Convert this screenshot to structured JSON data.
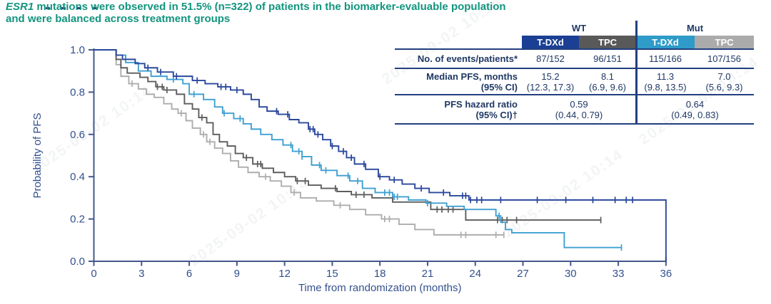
{
  "title": {
    "gene": "ESR1",
    "line1": " mutations were observed in 51.5% (n=322) of patients in the biomarker-evaluable population",
    "line2": "and were balanced across treatment groups",
    "color": "#12947E"
  },
  "watermark": {
    "text": "2025-09-02 10:14"
  },
  "table": {
    "line_color": "#223F7F",
    "text_color": "#1F3864",
    "group_headers": [
      "WT",
      "Mut"
    ],
    "col_headers": [
      {
        "label": "T-DXd",
        "bg": "#1B3F94"
      },
      {
        "label": "TPC",
        "bg": "#595959"
      },
      {
        "label": "T-DXd",
        "bg": "#2E9BC8"
      },
      {
        "label": "TPC",
        "bg": "#ABABAB"
      }
    ],
    "rows": [
      {
        "label": "No. of events/patients*",
        "values": [
          "87/152",
          "96/151",
          "115/166",
          "107/156"
        ]
      },
      {
        "label": "Median PFS, months",
        "label2": "(95% CI)",
        "values": [
          "15.2",
          "8.1",
          "11.3",
          "7.0"
        ],
        "values2": [
          "(12.3, 17.3)",
          "(6.9, 9.6)",
          "(9.8, 13.5)",
          "(5.6, 9.3)"
        ]
      },
      {
        "label": "PFS hazard ratio",
        "label2": "(95% CI)†",
        "values_span": [
          "0.59",
          "0.64"
        ],
        "values2_span": [
          "(0.44, 0.79)",
          "(0.49, 0.83)"
        ]
      }
    ]
  },
  "chart_data": {
    "type": "line",
    "subtype": "kaplan-meier-step",
    "xlabel": "Time from randomization (months)",
    "ylabel": "Probability of PFS",
    "xlim": [
      0,
      36
    ],
    "ylim": [
      0.0,
      1.0
    ],
    "xticks": [
      0,
      3,
      6,
      9,
      12,
      15,
      18,
      21,
      24,
      27,
      30,
      33,
      36
    ],
    "yticks": [
      0.0,
      0.2,
      0.4,
      0.6,
      0.8,
      1.0
    ],
    "grid": false,
    "legend": "none (series identified in table)",
    "axis_color": "#44588C",
    "tick_text_color": "#33508F",
    "series": [
      {
        "name": "Mut TPC",
        "color": "#ADADAD",
        "median_pfs_months": 7.0,
        "steps": [
          [
            1.4,
            0.93
          ],
          [
            1.7,
            0.875
          ],
          [
            2.2,
            0.84
          ],
          [
            2.8,
            0.815
          ],
          [
            3.3,
            0.79
          ],
          [
            3.8,
            0.775
          ],
          [
            4.4,
            0.745
          ],
          [
            4.9,
            0.72
          ],
          [
            5.3,
            0.7
          ],
          [
            5.8,
            0.665
          ],
          [
            6.2,
            0.63
          ],
          [
            6.7,
            0.6
          ],
          [
            7.1,
            0.565
          ],
          [
            7.6,
            0.535
          ],
          [
            8.1,
            0.51
          ],
          [
            8.6,
            0.475
          ],
          [
            9.1,
            0.445
          ],
          [
            9.7,
            0.42
          ],
          [
            10.4,
            0.4
          ],
          [
            11.1,
            0.38
          ],
          [
            11.8,
            0.355
          ],
          [
            12.4,
            0.325
          ],
          [
            13.0,
            0.3
          ],
          [
            14.0,
            0.285
          ],
          [
            15.1,
            0.265
          ],
          [
            16.1,
            0.245
          ],
          [
            17.1,
            0.22
          ],
          [
            18.1,
            0.2
          ],
          [
            19.2,
            0.175
          ],
          [
            20.2,
            0.15
          ],
          [
            21.4,
            0.125
          ]
        ],
        "end_t": 25.8,
        "drop_to_zero": false,
        "censors": [
          2.4,
          5.5,
          6.9,
          7.3,
          10.8,
          12.6,
          15.5,
          18.3,
          18.6,
          23.1,
          23.4,
          25.3,
          25.8
        ]
      },
      {
        "name": "WT TPC",
        "color": "#5D5D5D",
        "median_pfs_months": 8.1,
        "steps": [
          [
            1.4,
            0.955
          ],
          [
            1.7,
            0.915
          ],
          [
            2.1,
            0.89
          ],
          [
            2.9,
            0.87
          ],
          [
            3.4,
            0.85
          ],
          [
            3.9,
            0.825
          ],
          [
            4.4,
            0.81
          ],
          [
            5.2,
            0.79
          ],
          [
            5.7,
            0.745
          ],
          [
            6.2,
            0.72
          ],
          [
            6.6,
            0.68
          ],
          [
            7.1,
            0.655
          ],
          [
            7.5,
            0.6
          ],
          [
            7.9,
            0.565
          ],
          [
            8.4,
            0.545
          ],
          [
            8.9,
            0.51
          ],
          [
            9.4,
            0.49
          ],
          [
            10.0,
            0.46
          ],
          [
            10.6,
            0.44
          ],
          [
            11.3,
            0.42
          ],
          [
            12.0,
            0.4
          ],
          [
            12.7,
            0.38
          ],
          [
            13.5,
            0.36
          ],
          [
            14.3,
            0.345
          ],
          [
            15.3,
            0.33
          ],
          [
            16.2,
            0.315
          ],
          [
            17.5,
            0.3
          ],
          [
            18.8,
            0.28
          ],
          [
            21.2,
            0.245
          ],
          [
            23.4,
            0.195
          ]
        ],
        "end_t": 31.9,
        "drop_to_zero": false,
        "censors": [
          4.0,
          4.3,
          4.6,
          6.8,
          9.6,
          10.3,
          10.5,
          12.8,
          13.3,
          15.2,
          16.5,
          17.0,
          21.6,
          21.9,
          22.3,
          22.6,
          25.4,
          25.7,
          26.0,
          26.6,
          31.9
        ]
      },
      {
        "name": "Mut T-DXd",
        "color": "#3FA0D2",
        "median_pfs_months": 11.3,
        "steps": [
          [
            1.4,
            0.975
          ],
          [
            2.0,
            0.94
          ],
          [
            2.8,
            0.9
          ],
          [
            3.6,
            0.875
          ],
          [
            4.6,
            0.86
          ],
          [
            5.6,
            0.84
          ],
          [
            6.0,
            0.79
          ],
          [
            6.9,
            0.765
          ],
          [
            7.6,
            0.73
          ],
          [
            8.1,
            0.7
          ],
          [
            8.8,
            0.675
          ],
          [
            9.4,
            0.65
          ],
          [
            9.9,
            0.625
          ],
          [
            10.5,
            0.6
          ],
          [
            11.2,
            0.575
          ],
          [
            11.9,
            0.55
          ],
          [
            12.5,
            0.52
          ],
          [
            13.1,
            0.495
          ],
          [
            13.7,
            0.455
          ],
          [
            14.3,
            0.43
          ],
          [
            15.3,
            0.405
          ],
          [
            16.1,
            0.38
          ],
          [
            16.9,
            0.345
          ],
          [
            17.7,
            0.325
          ],
          [
            18.8,
            0.305
          ],
          [
            19.8,
            0.29
          ],
          [
            20.9,
            0.275
          ],
          [
            22.2,
            0.26
          ],
          [
            23.3,
            0.245
          ],
          [
            25.3,
            0.215
          ],
          [
            25.6,
            0.185
          ],
          [
            25.9,
            0.15
          ],
          [
            26.3,
            0.135
          ],
          [
            29.6,
            0.065
          ]
        ],
        "end_t": 33.2,
        "drop_to_zero": false,
        "censors": [
          5.0,
          6.3,
          8.2,
          9.2,
          12.4,
          12.9,
          13.1,
          14.2,
          14.6,
          16.0,
          16.6,
          18.3,
          18.6,
          18.9,
          19.1,
          21.0,
          25.5,
          33.2
        ]
      },
      {
        "name": "WT T-DXd",
        "color": "#2A479C",
        "median_pfs_months": 15.2,
        "steps": [
          [
            1.4,
            0.975
          ],
          [
            1.8,
            0.955
          ],
          [
            2.6,
            0.935
          ],
          [
            3.2,
            0.915
          ],
          [
            4.0,
            0.895
          ],
          [
            5.0,
            0.875
          ],
          [
            6.2,
            0.855
          ],
          [
            7.0,
            0.84
          ],
          [
            7.8,
            0.825
          ],
          [
            8.6,
            0.81
          ],
          [
            9.4,
            0.79
          ],
          [
            9.9,
            0.765
          ],
          [
            10.4,
            0.73
          ],
          [
            10.9,
            0.71
          ],
          [
            11.6,
            0.695
          ],
          [
            12.3,
            0.67
          ],
          [
            12.9,
            0.655
          ],
          [
            13.5,
            0.625
          ],
          [
            13.9,
            0.6
          ],
          [
            14.4,
            0.575
          ],
          [
            14.9,
            0.545
          ],
          [
            15.4,
            0.52
          ],
          [
            15.9,
            0.49
          ],
          [
            16.4,
            0.46
          ],
          [
            17.1,
            0.435
          ],
          [
            17.9,
            0.4
          ],
          [
            18.6,
            0.385
          ],
          [
            19.4,
            0.365
          ],
          [
            20.2,
            0.345
          ],
          [
            21.1,
            0.325
          ],
          [
            22.4,
            0.31
          ],
          [
            23.6,
            0.29
          ]
        ],
        "end_t": 36,
        "drop_to_zero": true,
        "censors": [
          3.4,
          4.2,
          5.2,
          6.5,
          8.0,
          8.3,
          9.0,
          11.5,
          12.2,
          13.6,
          13.8,
          14.1,
          15.0,
          15.7,
          16.2,
          17.0,
          18.0,
          18.9,
          20.6,
          22.0,
          23.2,
          23.4,
          23.7,
          24.1,
          24.4,
          25.6,
          27.9,
          29.7,
          31.4,
          32.8,
          33.5,
          33.9
        ]
      }
    ]
  }
}
